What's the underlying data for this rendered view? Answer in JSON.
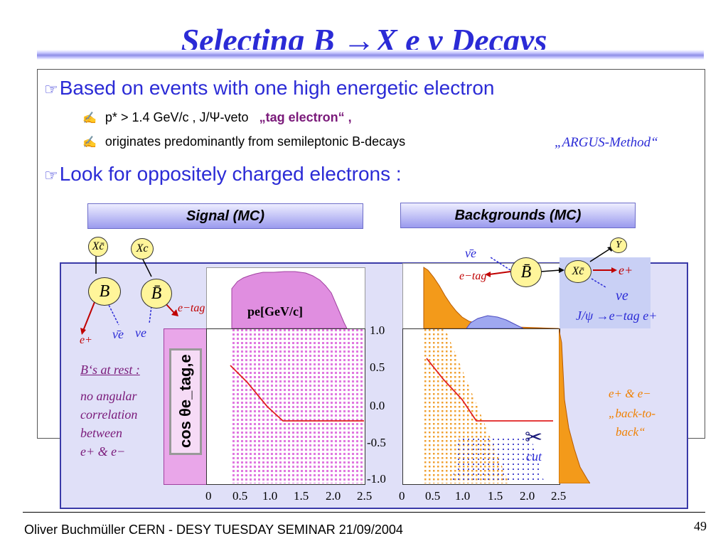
{
  "title": "Selecting B →X e ν Decays",
  "bullets": {
    "b1": "Based on events with one high energetic electron",
    "b1_sub1_pre": "p* > 1.4 GeV/c , J/Ψ-veto",
    "b1_sub1_tag": "„tag electron“ ,",
    "b1_sub2": "originates predominantly from semileptonic B-decays",
    "argus": "„ARGUS-Method“",
    "b2": "Look for oppositely charged electrons :"
  },
  "panels": {
    "signal_header": "Signal (MC)",
    "backgrounds_header": "Backgrounds (MC)",
    "pe_label": "pe[GeV/c]",
    "cos_label": "cos θe_tag,e",
    "cut_label": "cut"
  },
  "signal_diagram": {
    "xc1": "Xc̄",
    "xc2": "Xc",
    "b": "B",
    "bbar": "B̄",
    "e_tag": "e−tag",
    "e_plus": "e+",
    "nu_bar": "ν̄e",
    "nu": "νe",
    "note_title": "B‘s at rest :",
    "note_body1": "no angular",
    "note_body2": "correlation",
    "note_body3": "between",
    "note_body4": "e+ & e−"
  },
  "bg_diagram": {
    "nu_bar": "ν̄e",
    "e_tag": "e−tag",
    "bbar": "B̄",
    "xc": "Xc̄",
    "y": "Y",
    "e_plus": "e+",
    "nu": "νe",
    "jpsi": "J/ψ →e−tag e+",
    "b2b1": "e+ & e−",
    "b2b2": "„back-to-",
    "b2b3": "back“"
  },
  "axes": {
    "y_ticks": [
      "1.0",
      "0.5",
      "0.0",
      "-0.5",
      "-1.0"
    ],
    "x_ticks": [
      "0",
      "0.5",
      "1.0",
      "1.5",
      "2.0",
      "2.5"
    ]
  },
  "colors": {
    "title": "#2b2bd6",
    "signal": "#e08ee0",
    "background": "#f39a1a",
    "cut": "#e02020"
  },
  "footer": {
    "left": "Oliver Buchmüller CERN - DESY TUESDAY SEMINAR 21/09/2004",
    "page": "49"
  }
}
